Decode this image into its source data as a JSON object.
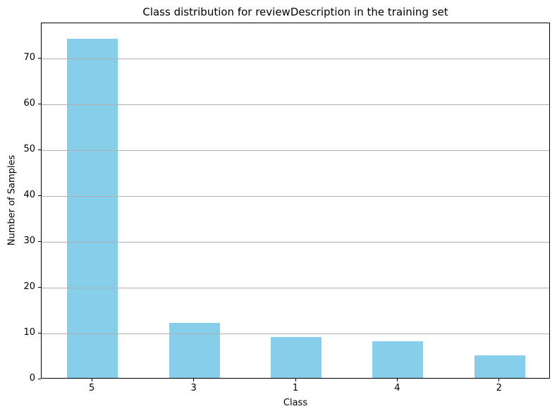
{
  "chart_data": {
    "type": "bar",
    "title": "Class distribution for reviewDescription in the training set",
    "xlabel": "Class",
    "ylabel": "Number of Samples",
    "categories": [
      "5",
      "3",
      "1",
      "4",
      "2"
    ],
    "values": [
      74,
      12,
      9,
      8,
      5
    ],
    "yticks": [
      0,
      10,
      20,
      30,
      40,
      50,
      60,
      70
    ],
    "ylim": [
      0,
      77.7
    ],
    "bar_color": "#87CEEB",
    "bar_width_fraction": 0.5,
    "grid": "horizontal",
    "grid_over_bars": true,
    "grid_color": "#b0b0b0",
    "axis_color": "#000000",
    "text_color": "#000000",
    "background_color": "#ffffff",
    "legend": "none"
  }
}
